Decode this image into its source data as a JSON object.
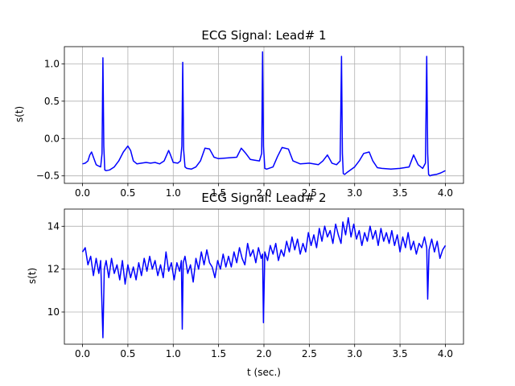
{
  "chart_data": [
    {
      "type": "line",
      "title": "ECG Signal: Lead# 1",
      "xlabel": "",
      "ylabel": "s(t)",
      "xlim": [
        -0.2,
        4.2
      ],
      "ylim": [
        -0.6,
        1.23
      ],
      "xticks": [
        0.0,
        0.5,
        1.0,
        1.5,
        2.0,
        2.5,
        3.0,
        3.5,
        4.0
      ],
      "xtick_labels": [
        "0.0",
        "0.5",
        "1.0",
        "1.5",
        "2.0",
        "2.5",
        "3.0",
        "3.5",
        "4.0"
      ],
      "yticks": [
        -0.5,
        0.0,
        0.5,
        1.0
      ],
      "ytick_labels": [
        "−0.5",
        "0.0",
        "0.5",
        "1.0"
      ],
      "grid": true,
      "color": "#0000ff",
      "series": [
        {
          "x": [
            0.0,
            0.03,
            0.06,
            0.08,
            0.1,
            0.12,
            0.15,
            0.18,
            0.2,
            0.215,
            0.225,
            0.235,
            0.245,
            0.26,
            0.3,
            0.35,
            0.4,
            0.45,
            0.5,
            0.53,
            0.56,
            0.6,
            0.65,
            0.7,
            0.75,
            0.8,
            0.85,
            0.9,
            0.95,
            0.97,
            1.0,
            1.05,
            1.08,
            1.095,
            1.105,
            1.115,
            1.13,
            1.15,
            1.2,
            1.25,
            1.3,
            1.35,
            1.4,
            1.45,
            1.5,
            1.6,
            1.7,
            1.75,
            1.8,
            1.85,
            1.9,
            1.95,
            1.975,
            1.985,
            1.995,
            2.01,
            2.03,
            2.1,
            2.15,
            2.2,
            2.27,
            2.32,
            2.4,
            2.5,
            2.6,
            2.65,
            2.7,
            2.75,
            2.8,
            2.84,
            2.855,
            2.865,
            2.875,
            2.89,
            2.92,
            3.0,
            3.05,
            3.1,
            3.16,
            3.2,
            3.25,
            3.3,
            3.4,
            3.5,
            3.6,
            3.65,
            3.7,
            3.75,
            3.78,
            3.795,
            3.805,
            3.815,
            3.83,
            3.85,
            3.9,
            3.95,
            4.0
          ],
          "y": [
            -0.34,
            -0.33,
            -0.3,
            -0.22,
            -0.18,
            -0.25,
            -0.35,
            -0.37,
            -0.38,
            -0.2,
            1.08,
            -0.1,
            -0.42,
            -0.43,
            -0.42,
            -0.38,
            -0.3,
            -0.18,
            -0.1,
            -0.16,
            -0.3,
            -0.34,
            -0.33,
            -0.32,
            -0.33,
            -0.32,
            -0.34,
            -0.3,
            -0.16,
            -0.22,
            -0.32,
            -0.33,
            -0.3,
            -0.1,
            1.02,
            -0.15,
            -0.38,
            -0.4,
            -0.41,
            -0.38,
            -0.3,
            -0.13,
            -0.14,
            -0.25,
            -0.27,
            -0.26,
            -0.25,
            -0.13,
            -0.2,
            -0.28,
            -0.29,
            -0.3,
            -0.2,
            1.16,
            -0.1,
            -0.4,
            -0.41,
            -0.38,
            -0.24,
            -0.12,
            -0.14,
            -0.3,
            -0.34,
            -0.33,
            -0.35,
            -0.3,
            -0.22,
            -0.33,
            -0.35,
            -0.3,
            1.1,
            -0.2,
            -0.47,
            -0.48,
            -0.45,
            -0.38,
            -0.3,
            -0.2,
            -0.18,
            -0.3,
            -0.39,
            -0.4,
            -0.41,
            -0.4,
            -0.38,
            -0.22,
            -0.35,
            -0.4,
            -0.33,
            1.1,
            -0.2,
            -0.48,
            -0.5,
            -0.49,
            -0.48,
            -0.46,
            -0.43
          ]
        }
      ]
    },
    {
      "type": "line",
      "title": "ECG Signal: Lead# 2",
      "xlabel": "t (sec.)",
      "ylabel": "s(t)",
      "xlim": [
        -0.2,
        4.2
      ],
      "ylim": [
        8.5,
        14.8
      ],
      "xticks": [
        0.0,
        0.5,
        1.0,
        1.5,
        2.0,
        2.5,
        3.0,
        3.5,
        4.0
      ],
      "xtick_labels": [
        "0.0",
        "0.5",
        "1.0",
        "1.5",
        "2.0",
        "2.5",
        "3.0",
        "3.5",
        "4.0"
      ],
      "yticks": [
        10,
        12,
        14
      ],
      "ytick_labels": [
        "10",
        "12",
        "14"
      ],
      "grid": true,
      "color": "#0000ff",
      "series": [
        {
          "x": [
            0.0,
            0.03,
            0.06,
            0.09,
            0.12,
            0.15,
            0.18,
            0.2,
            0.225,
            0.24,
            0.26,
            0.29,
            0.32,
            0.35,
            0.38,
            0.41,
            0.44,
            0.47,
            0.5,
            0.53,
            0.56,
            0.59,
            0.62,
            0.65,
            0.68,
            0.71,
            0.74,
            0.77,
            0.8,
            0.83,
            0.86,
            0.89,
            0.92,
            0.95,
            0.98,
            1.01,
            1.04,
            1.07,
            1.09,
            1.1,
            1.11,
            1.13,
            1.16,
            1.19,
            1.22,
            1.25,
            1.28,
            1.31,
            1.34,
            1.37,
            1.4,
            1.43,
            1.46,
            1.49,
            1.52,
            1.55,
            1.58,
            1.61,
            1.64,
            1.67,
            1.7,
            1.73,
            1.76,
            1.79,
            1.82,
            1.85,
            1.88,
            1.91,
            1.94,
            1.97,
            1.985,
            1.995,
            2.01,
            2.04,
            2.07,
            2.1,
            2.13,
            2.16,
            2.19,
            2.22,
            2.25,
            2.28,
            2.31,
            2.34,
            2.37,
            2.4,
            2.43,
            2.46,
            2.49,
            2.52,
            2.55,
            2.58,
            2.61,
            2.64,
            2.67,
            2.7,
            2.73,
            2.76,
            2.79,
            2.82,
            2.85,
            2.87,
            2.9,
            2.93,
            2.96,
            2.99,
            3.02,
            3.05,
            3.08,
            3.11,
            3.14,
            3.17,
            3.2,
            3.23,
            3.26,
            3.29,
            3.32,
            3.35,
            3.38,
            3.41,
            3.44,
            3.47,
            3.5,
            3.53,
            3.56,
            3.59,
            3.62,
            3.65,
            3.68,
            3.71,
            3.74,
            3.77,
            3.795,
            3.805,
            3.82,
            3.85,
            3.88,
            3.91,
            3.94,
            3.97,
            4.0
          ],
          "y": [
            12.8,
            13.0,
            12.2,
            12.6,
            11.7,
            12.5,
            11.8,
            12.4,
            8.8,
            12.0,
            12.4,
            11.6,
            12.5,
            11.8,
            12.2,
            11.5,
            12.4,
            11.3,
            12.2,
            11.6,
            12.1,
            11.5,
            12.3,
            11.7,
            12.5,
            11.9,
            12.6,
            12.0,
            12.4,
            11.7,
            12.2,
            11.6,
            12.8,
            11.9,
            12.3,
            11.5,
            12.3,
            11.9,
            12.4,
            9.2,
            12.3,
            12.6,
            11.8,
            12.2,
            11.4,
            12.5,
            12.0,
            12.8,
            12.2,
            12.9,
            12.3,
            12.1,
            11.6,
            12.4,
            12.0,
            12.7,
            12.1,
            12.6,
            12.1,
            12.8,
            12.3,
            13.0,
            12.5,
            12.2,
            13.2,
            12.6,
            12.9,
            12.3,
            13.0,
            12.5,
            12.7,
            9.5,
            12.8,
            12.4,
            13.1,
            12.7,
            13.2,
            12.4,
            12.9,
            12.6,
            13.3,
            12.8,
            13.5,
            12.9,
            13.4,
            12.7,
            13.2,
            12.8,
            13.7,
            13.1,
            13.6,
            13.0,
            13.9,
            13.3,
            14.0,
            13.5,
            13.8,
            13.2,
            14.1,
            13.6,
            13.2,
            14.2,
            13.6,
            14.4,
            13.5,
            14.1,
            13.4,
            13.8,
            13.1,
            13.7,
            13.3,
            14.0,
            13.4,
            13.8,
            13.1,
            13.9,
            13.3,
            13.7,
            13.2,
            13.8,
            13.1,
            13.6,
            12.8,
            13.5,
            13.0,
            13.7,
            12.9,
            13.3,
            12.7,
            13.2,
            13.0,
            13.5,
            13.0,
            10.6,
            12.9,
            13.4,
            12.8,
            13.3,
            12.5,
            12.9,
            13.1
          ]
        }
      ]
    }
  ]
}
